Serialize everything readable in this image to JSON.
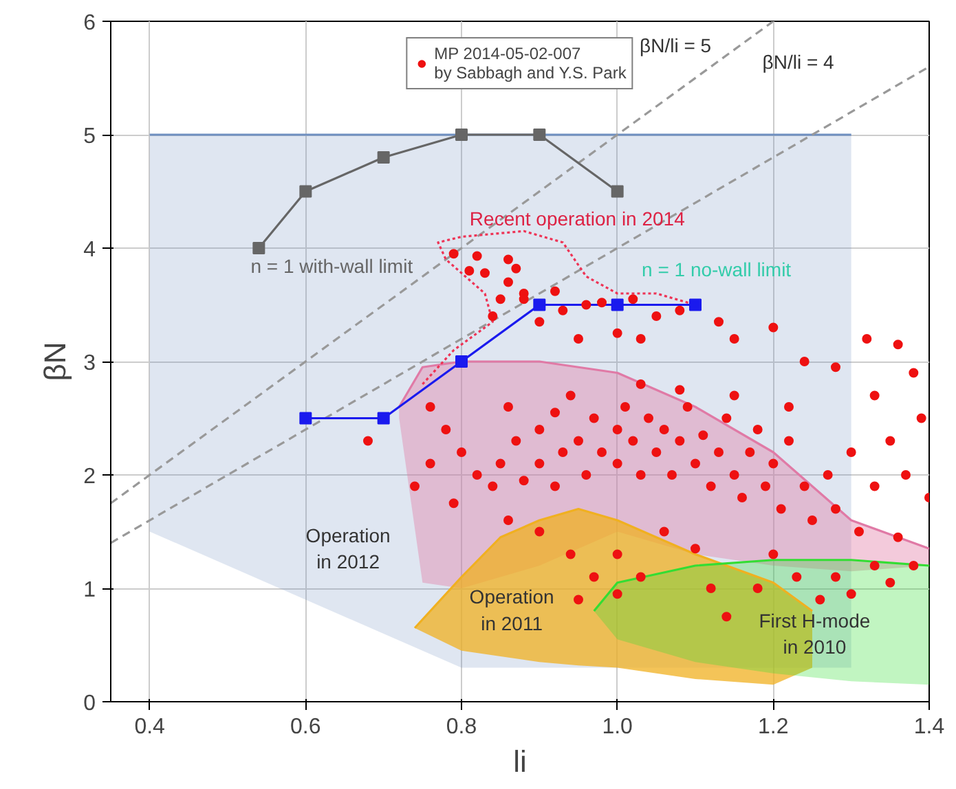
{
  "chart_data": {
    "type": "scatter",
    "xlabel": "li",
    "ylabel": "βN",
    "xlim": [
      0.35,
      1.4
    ],
    "ylim": [
      0,
      6
    ],
    "xticks": [
      {
        "value": 0.4,
        "label": "0.4"
      },
      {
        "value": 0.6,
        "label": "0.6"
      },
      {
        "value": 0.8,
        "label": "0.8"
      },
      {
        "value": 1.0,
        "label": "1.0"
      },
      {
        "value": 1.2,
        "label": "1.2"
      },
      {
        "value": 1.4,
        "label": "1.4"
      }
    ],
    "yticks": [
      0,
      1,
      2,
      3,
      4,
      5,
      6
    ],
    "grid": true,
    "legend": "top",
    "marker": "circle",
    "series": [
      {
        "type": "line",
        "marker": "none",
        "color": "#6f8fc0",
        "x": [
          0.4,
          0.7,
          0.8,
          1.3
        ],
        "lower": [
          1.5,
          0.6,
          0.3,
          0.3
        ],
        "upper": [
          5,
          5,
          5,
          5
        ],
        "values": [
          5,
          5,
          5,
          5
        ]
      },
      {
        "type": "line",
        "marker": "none",
        "color": "#e07aa6",
        "x": [
          0.72,
          0.75,
          0.8,
          0.9,
          1.0,
          1.1,
          1.2,
          1.3,
          1.4
        ],
        "lower": [
          2.5,
          1.05,
          1.0,
          1.2,
          1.5,
          1.3,
          1.2,
          1.15,
          1.2
        ],
        "upper": [
          2.6,
          2.95,
          3.0,
          3.0,
          2.9,
          2.6,
          2.2,
          1.6,
          1.35
        ],
        "values": [
          2.6,
          2.95,
          3.0,
          3.0,
          2.9,
          2.6,
          2.2,
          1.6,
          1.35
        ]
      },
      {
        "type": "line",
        "marker": "none",
        "color": "#f0b020",
        "x": [
          0.74,
          0.8,
          0.85,
          0.9,
          0.95,
          1.0,
          1.1,
          1.2,
          1.25
        ],
        "lower": [
          0.65,
          0.45,
          0.4,
          0.35,
          0.32,
          0.3,
          0.2,
          0.15,
          0.3
        ],
        "upper": [
          0.65,
          1.1,
          1.45,
          1.6,
          1.7,
          1.6,
          1.3,
          1.05,
          0.8
        ],
        "values": [
          0.65,
          1.1,
          1.45,
          1.6,
          1.7,
          1.6,
          1.3,
          1.05,
          0.8
        ]
      },
      {
        "type": "line",
        "marker": "none",
        "color": "#33dd33",
        "x": [
          0.97,
          1.0,
          1.1,
          1.2,
          1.3,
          1.4
        ],
        "lower": [
          0.8,
          0.55,
          0.35,
          0.25,
          0.18,
          0.15
        ],
        "upper": [
          0.8,
          1.05,
          1.2,
          1.25,
          1.25,
          1.2
        ],
        "values": [
          0.8,
          1.05,
          1.2,
          1.25,
          1.25,
          1.2
        ]
      },
      {
        "type": "line",
        "color": "#999999",
        "line_style": "dashed",
        "marker": "none",
        "x": [
          0.35,
          1.2
        ],
        "values": [
          1.75,
          6
        ]
      },
      {
        "type": "line",
        "color": "#999999",
        "line_style": "dashed",
        "marker": "none",
        "x": [
          0.35,
          1.4
        ],
        "values": [
          1.4,
          5.6
        ]
      },
      {
        "type": "line",
        "color": "#ee3355",
        "line_style": "dotted",
        "marker": "none",
        "x": [
          0.75,
          0.79,
          0.84,
          0.83,
          0.78,
          0.77,
          0.8,
          0.88,
          0.93,
          0.96,
          1.0,
          1.05,
          1.1
        ],
        "values": [
          2.8,
          3.1,
          3.35,
          3.6,
          3.9,
          4.05,
          4.1,
          4.15,
          4.05,
          3.75,
          3.6,
          3.6,
          3.5
        ]
      },
      {
        "type": "line",
        "color": "#666666",
        "line_style": "solid",
        "marker": "square",
        "x": [
          0.54,
          0.6,
          0.7,
          0.8,
          0.9,
          1.0
        ],
        "values": [
          4.0,
          4.5,
          4.8,
          5.0,
          5.0,
          4.5
        ]
      },
      {
        "type": "line",
        "color": "#1a1aee",
        "line_style": "solid",
        "marker": "square",
        "x": [
          0.6,
          0.7,
          0.8,
          0.9,
          1.0,
          1.1
        ],
        "values": [
          2.5,
          2.5,
          3.0,
          3.5,
          3.5,
          3.5
        ]
      },
      {
        "name": "MP 2014-05-02-007\nby Sabbagh and Y.S. Park",
        "color": "#ee1111",
        "x": [
          0.79,
          0.82,
          0.81,
          0.83,
          0.86,
          0.87,
          0.86,
          0.88,
          0.85,
          0.84,
          0.88,
          0.92,
          0.9,
          0.93,
          0.96,
          0.98,
          1.02,
          1.05,
          0.95,
          1.0,
          1.03,
          1.08,
          1.13,
          1.15,
          1.2,
          1.24,
          1.28,
          1.32,
          1.36,
          1.38,
          1.33,
          1.39,
          1.35,
          1.37,
          1.4,
          1.33,
          1.31,
          1.36,
          1.38,
          0.76,
          0.78,
          0.76,
          0.8,
          0.82,
          0.84,
          0.85,
          0.87,
          0.88,
          0.9,
          0.9,
          0.92,
          0.93,
          0.95,
          0.96,
          0.97,
          0.98,
          1.0,
          1.0,
          1.01,
          1.02,
          1.03,
          1.04,
          1.05,
          1.06,
          1.07,
          1.08,
          1.09,
          1.1,
          1.11,
          1.12,
          1.13,
          1.14,
          1.15,
          1.16,
          1.17,
          1.18,
          1.19,
          1.2,
          1.21,
          1.22,
          1.24,
          1.25,
          1.27,
          1.28,
          1.3,
          0.94,
          1.03,
          1.08,
          1.15,
          1.22,
          0.86,
          0.92,
          0.68,
          0.74,
          0.79,
          0.86,
          0.9,
          0.94,
          0.97,
          1.0,
          1.03,
          1.06,
          1.1,
          1.12,
          1.14,
          1.18,
          1.2,
          1.23,
          1.26,
          1.28,
          1.3,
          1.33,
          1.35,
          1.0,
          0.95
        ],
        "values": [
          3.95,
          3.93,
          3.8,
          3.78,
          3.9,
          3.82,
          3.7,
          3.6,
          3.55,
          3.4,
          3.55,
          3.62,
          3.35,
          3.45,
          3.5,
          3.52,
          3.55,
          3.4,
          3.2,
          3.25,
          3.2,
          3.45,
          3.35,
          3.2,
          3.3,
          3.0,
          2.95,
          3.2,
          3.15,
          2.9,
          2.7,
          2.5,
          2.3,
          2.0,
          1.8,
          1.9,
          1.5,
          1.45,
          1.2,
          2.6,
          2.4,
          2.1,
          2.2,
          2.0,
          1.9,
          2.1,
          2.3,
          1.95,
          2.1,
          2.4,
          1.9,
          2.2,
          2.3,
          2.0,
          2.5,
          2.2,
          2.4,
          2.1,
          2.6,
          2.3,
          2.0,
          2.5,
          2.2,
          2.4,
          2.0,
          2.3,
          2.6,
          2.1,
          2.35,
          1.9,
          2.2,
          2.5,
          2.0,
          1.8,
          2.2,
          2.4,
          1.9,
          2.1,
          1.7,
          2.3,
          1.9,
          1.6,
          2.0,
          1.7,
          2.2,
          2.7,
          2.8,
          2.75,
          2.7,
          2.6,
          2.6,
          2.55,
          2.3,
          1.9,
          1.75,
          1.6,
          1.5,
          1.3,
          1.1,
          1.3,
          1.1,
          1.5,
          1.35,
          1.0,
          0.75,
          1.0,
          1.3,
          1.1,
          0.9,
          1.1,
          0.95,
          1.2,
          1.05,
          0.95,
          0.9
        ]
      }
    ],
    "annotations": [
      "βN/li = 5",
      "βN/li = 4",
      "Recent operation in 2014",
      "n = 1 with-wall limit",
      "n = 1 no-wall limit",
      "Operation\nin 2012",
      "Operation\nin 2011",
      "First H-mode\nin 2010"
    ]
  }
}
